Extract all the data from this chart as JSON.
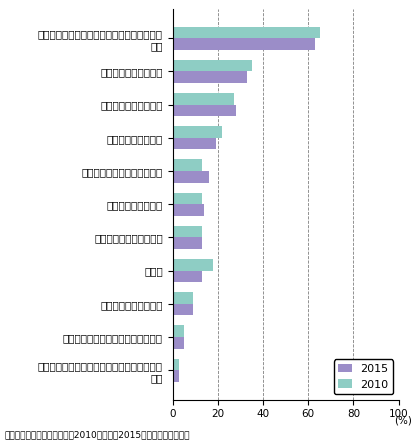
{
  "categories": [
    "日本語でのビジネスコミュニケーションの困\n難性",
    "給与等報酬水準の高さ",
    "駐在ビザ取得の困難性",
    "住居等確保の困難性",
    "英語の通じる病院・医師不足",
    "永住権取得の困難性",
    "法定外福利費水準の高さ",
    "その他",
    "配偶者の就業の困難性",
    "インターナショナルスクールの不足",
    "家事使用人・ベビーシッターのビザ取得の困\n難性"
  ],
  "values_2015": [
    63,
    33,
    28,
    19,
    16,
    14,
    13,
    13,
    9,
    5,
    3
  ],
  "values_2010": [
    65,
    35,
    27,
    22,
    13,
    13,
    13,
    18,
    9,
    5,
    3
  ],
  "color_2015": "#9b8dc8",
  "color_2010": "#8ecdc4",
  "legend_labels": [
    "2015",
    "2010"
  ],
  "xlabel": "(%)",
  "xlim": [
    0,
    100
  ],
  "xticks": [
    0,
    20,
    40,
    60,
    80,
    100
  ],
  "source": "資料：外資系企業動向調査（2010年実績、2015年実績）から引用。",
  "bar_height": 0.35,
  "title_fontsize": 8,
  "tick_fontsize": 7.5,
  "legend_fontsize": 8
}
